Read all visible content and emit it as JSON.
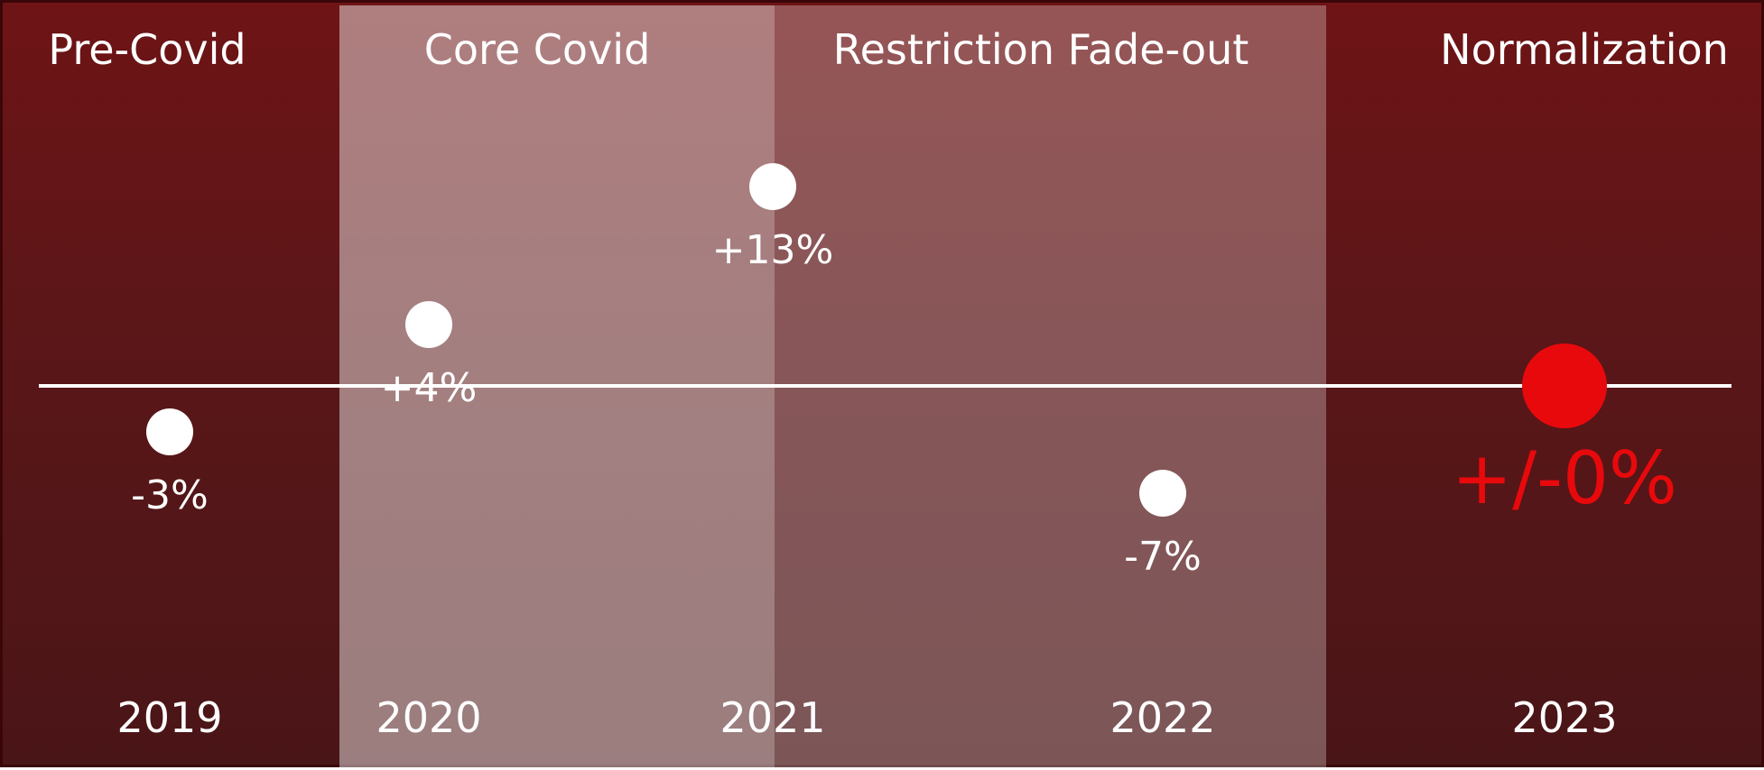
{
  "chart_data": {
    "type": "scatter",
    "title": "",
    "xlabel": "",
    "ylabel": "",
    "phases": [
      {
        "label": "Pre-Covid",
        "from": "2019",
        "to": "2019.5"
      },
      {
        "label": "Core Covid",
        "from": "2019.5",
        "to": "2021"
      },
      {
        "label": "Restriction Fade-out",
        "from": "2021",
        "to": "2022.5"
      },
      {
        "label": "Normalization",
        "from": "2022.5",
        "to": "2023"
      }
    ],
    "categories": [
      "2019",
      "2020",
      "2021",
      "2022",
      "2023"
    ],
    "values": [
      -3,
      4,
      13,
      -7,
      0
    ],
    "value_labels": [
      "-3%",
      "+4%",
      "+13%",
      "-7%",
      "+/-0%"
    ],
    "highlight_index": 4,
    "baseline": 0,
    "colors": {
      "background": "#5a1618",
      "point": "#ffffff",
      "highlight": "#e8090c",
      "baseline": "#ffffff",
      "core_band": "rgba(255,255,255,0.45)",
      "fade_band": "rgba(255,255,255,0.28)"
    }
  }
}
